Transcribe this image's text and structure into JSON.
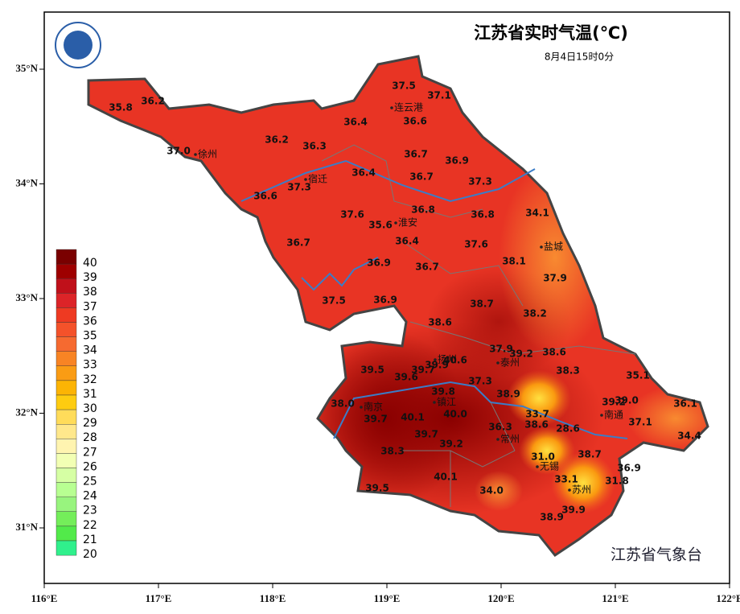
{
  "header": {
    "title": "江苏省实时气温(℃)",
    "subtitle": "8月4日15时0分",
    "footer": "江苏省气象台"
  },
  "axes": {
    "xticks": [
      {
        "value": 116,
        "label": "116°E"
      },
      {
        "value": 117,
        "label": "117°E"
      },
      {
        "value": 118,
        "label": "118°E"
      },
      {
        "value": 119,
        "label": "119°E"
      },
      {
        "value": 120,
        "label": "120°E"
      },
      {
        "value": 121,
        "label": "121°E"
      },
      {
        "value": 122,
        "label": "122°E"
      }
    ],
    "yticks": [
      {
        "value": 35,
        "label": "35°N"
      },
      {
        "value": 34,
        "label": "34°N"
      },
      {
        "value": 33,
        "label": "33°N"
      },
      {
        "value": 32,
        "label": "32°N"
      },
      {
        "value": 31,
        "label": "31°N"
      }
    ],
    "xlim": [
      116,
      122
    ],
    "ylim": [
      30.5,
      35.5
    ]
  },
  "legend": {
    "values": [
      40,
      39,
      38,
      37,
      36,
      35,
      34,
      33,
      32,
      31,
      30,
      29,
      28,
      27,
      26,
      25,
      24,
      23,
      22,
      21,
      20
    ],
    "colors": [
      "#7a0000",
      "#9e0000",
      "#c0101a",
      "#dc2428",
      "#ee3a22",
      "#f4522a",
      "#f66a30",
      "#f88424",
      "#fa9c14",
      "#fcb404",
      "#fecc10",
      "#ffdc5a",
      "#ffe88c",
      "#fff4b0",
      "#f2ffb4",
      "#d6ffa4",
      "#b8ff92",
      "#98f47e",
      "#74ee5a",
      "#52ea4a",
      "#30f08c"
    ]
  },
  "cities": [
    "连云港",
    "徐州",
    "宿迁",
    "淮安",
    "盐城",
    "扬州",
    "泰州",
    "南京",
    "镇江",
    "常州",
    "无锡",
    "南通",
    "苏州"
  ],
  "stations": {
    "values": [
      37.5,
      37.1,
      35.8,
      36.2,
      36.4,
      36.6,
      36.2,
      36.3,
      37,
      36.7,
      36.9,
      36.4,
      36.7,
      37.3,
      37.3,
      36.6,
      36.8,
      37.6,
      35.6,
      36.8,
      34.1,
      36.4,
      37.6,
      36.7,
      38.1,
      36.9,
      36.7,
      37.9,
      37.5,
      36.9,
      38.7,
      38.2,
      38.6,
      37.9,
      39.2,
      38.6,
      40.6,
      39.9,
      39.7,
      39.5,
      38.3,
      39.6,
      37.3,
      35.1,
      38.9,
      38,
      39.2,
      39,
      36.1,
      39.8,
      33.7,
      37.1,
      39.7,
      40.1,
      40,
      38.6,
      28.6,
      36.3,
      34.4,
      39.7,
      39.2,
      38.3,
      31,
      38.7,
      36.9,
      33.1,
      40.1,
      31.8,
      39.5,
      34,
      39.9,
      38.9
    ],
    "value_labels": [
      "37.5",
      "37.1",
      "35.8",
      "36.2",
      "36.4",
      "36.6",
      "36.2",
      "36.3",
      "37.0",
      "36.7",
      "36.9",
      "36.4",
      "36.7",
      "37.3",
      "37.3",
      "36.6",
      "36.8",
      "37.6",
      "35.6",
      "36.8",
      "34.1",
      "36.4",
      "37.6",
      "36.7",
      "38.1",
      "36.9",
      "36.7",
      "37.9",
      "37.5",
      "36.9",
      "38.7",
      "38.2",
      "38.6",
      "37.9",
      "39.2",
      "38.6",
      "40.6",
      "39.9",
      "39.7",
      "39.5",
      "38.3",
      "39.6",
      "37.3",
      "35.1",
      "38.9",
      "38.0",
      "39.2",
      "39.0",
      "36.1",
      "39.8",
      "33.7",
      "37.1",
      "39.7",
      "40.1",
      "40.0",
      "38.6",
      "28.6",
      "36.3",
      "34.4",
      "39.7",
      "39.2",
      "38.3",
      "31.0",
      "38.7",
      "36.9",
      "33.1",
      "40.1",
      "31.8",
      "39.5",
      "34.0",
      "39.9",
      "38.9"
    ]
  }
}
